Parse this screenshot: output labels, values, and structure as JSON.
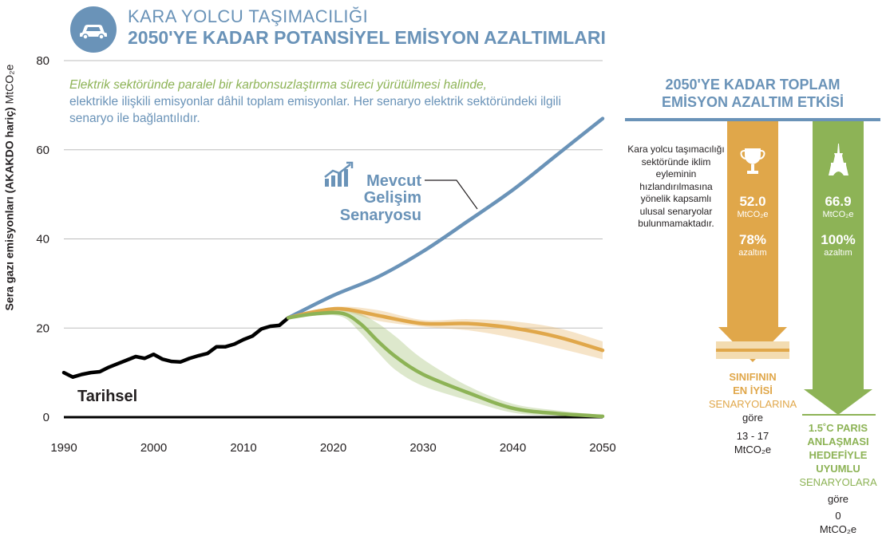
{
  "header": {
    "icon": "car-icon",
    "title_line1": "KARA YOLCU TAŞIMACILIĞI",
    "title_line2": "2050'YE KADAR POTANSİYEL EMİSYON AZALTIMLARI"
  },
  "note": {
    "line1": "Elektrik sektöründe paralel bir karbonsuzlaştırma süreci yürütülmesi halinde,",
    "line2": "elektrikle ilişkili emisyonlar dâhil toplam emisyonlar. Her senaryo elektrik sektöründeki ilgili senaryo ile bağlantılıdır."
  },
  "colors": {
    "blue": "#6a93b8",
    "orange": "#e0a74a",
    "green": "#8db356",
    "black": "#000000",
    "grid": "#bdbdbd"
  },
  "chart_data": {
    "type": "line",
    "ylabel_bold": "Sera gazı emisyonları (AKAKDO hariç)",
    "ylabel_unit": "MtCO₂e",
    "ylim": [
      0,
      80
    ],
    "xlim": [
      1990,
      2050
    ],
    "yticks": [
      0,
      20,
      40,
      60,
      80
    ],
    "xticks": [
      1990,
      2000,
      2010,
      2020,
      2030,
      2040,
      2050
    ],
    "grid": true,
    "series": [
      {
        "name": "Tarihsel",
        "color": "#000000",
        "x": [
          1990,
          1991,
          1992,
          1993,
          1994,
          1995,
          1996,
          1997,
          1998,
          1999,
          2000,
          2001,
          2002,
          2003,
          2004,
          2005,
          2006,
          2007,
          2008,
          2009,
          2010,
          2011,
          2012,
          2013,
          2014,
          2015
        ],
        "y": [
          10.0,
          9.0,
          9.6,
          10.0,
          10.2,
          11.2,
          12.0,
          12.8,
          13.6,
          13.2,
          14.1,
          13.0,
          12.5,
          12.4,
          13.2,
          13.8,
          14.3,
          15.8,
          15.8,
          16.4,
          17.4,
          18.2,
          19.8,
          20.4,
          20.6,
          22.3
        ]
      },
      {
        "name": "Mevcut Gelişim Senaryosu",
        "color": "#6a93b8",
        "x": [
          2015,
          2020,
          2025,
          2030,
          2035,
          2040,
          2045,
          2050
        ],
        "y": [
          22.3,
          27.3,
          31.5,
          37.2,
          44.0,
          51.0,
          59.0,
          67.0
        ]
      },
      {
        "name": "Sınıfının en iyisi",
        "color": "#e0a74a",
        "x": [
          2015,
          2018,
          2021,
          2025,
          2030,
          2035,
          2040,
          2045,
          2050
        ],
        "y": [
          22.3,
          23.7,
          24.3,
          22.8,
          21.0,
          21.0,
          20.0,
          18.0,
          15.0
        ],
        "band_low": [
          22.3,
          23.4,
          23.8,
          21.6,
          20.3,
          19.5,
          17.8,
          15.5,
          13.0
        ],
        "band_high": [
          22.3,
          24.0,
          24.8,
          24.0,
          21.8,
          22.0,
          21.5,
          20.0,
          17.0
        ]
      },
      {
        "name": "1.5°C Paris",
        "color": "#8db356",
        "x": [
          2015,
          2018,
          2021,
          2023,
          2025,
          2027,
          2030,
          2035,
          2040,
          2045,
          2050
        ],
        "y": [
          22.3,
          23.2,
          23.3,
          21.0,
          17.0,
          13.5,
          9.6,
          5.5,
          2.0,
          0.8,
          0.2
        ],
        "band_low": [
          22.3,
          22.8,
          22.5,
          19.0,
          14.5,
          10.5,
          7.0,
          3.8,
          1.0,
          0.3,
          0.0
        ],
        "band_high": [
          22.3,
          23.5,
          24.0,
          23.2,
          21.0,
          18.0,
          13.0,
          7.0,
          3.0,
          1.5,
          0.5
        ]
      }
    ],
    "annotations": {
      "historic_label": "Tarihsel",
      "bau_label": [
        "Mevcut",
        "Gelişim",
        "Senaryosu"
      ],
      "bau_icon": "bar-chart-trend-icon"
    }
  },
  "side": {
    "title_line1": "2050'YE KADAR TOPLAM",
    "title_line2": "EMİSYON AZALTIM ETKİSİ",
    "note": "Kara yolcu taşımacılığı sektöründe iklim eyleminin hızlandırılmasına yönelik kapsamlı ulusal senaryolar bulunmamaktadır.",
    "best": {
      "icon": "trophy-icon",
      "value": "52.0",
      "unit": "MtCO₂e",
      "percent": "78%",
      "percent_label": "azaltım",
      "target_value": 15,
      "target_band": [
        13,
        17
      ],
      "caption_bold1": "SINIFININ",
      "caption_bold2": "EN İYİSİ",
      "caption_light": "SENARYOLARINA",
      "caption_gore": "göre",
      "caption_range": "13 - 17",
      "caption_unit": "MtCO₂e"
    },
    "paris": {
      "icon": "eiffel-tower-icon",
      "value": "66.9",
      "unit": "MtCO₂e",
      "percent": "100%",
      "percent_label": "azaltım",
      "caption_bold1": "1.5˚C PARIS",
      "caption_bold2": "ANLAŞMASI",
      "caption_bold3": "HEDEFİYLE",
      "caption_bold4": "UYUMLU",
      "caption_light": "SENARYOLARA",
      "caption_gore": "göre",
      "caption_value": "0",
      "caption_unit": "MtCO₂e"
    }
  }
}
